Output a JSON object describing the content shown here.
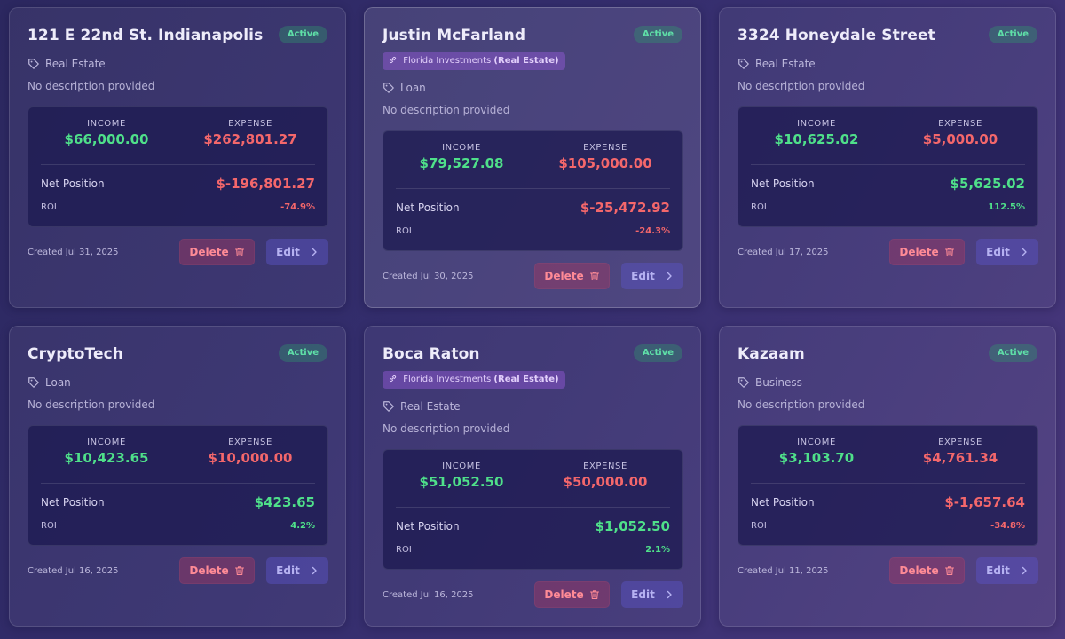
{
  "cards": [
    {
      "title": "121 E 22nd St. Indianapolis",
      "status": "Active",
      "category": "Real Estate",
      "description": "No description provided",
      "income_label": "INCOME",
      "income": "$66,000.00",
      "expense_label": "EXPENSE",
      "expense": "$262,801.27",
      "net_label": "Net Position",
      "net": "$-196,801.27",
      "roi_label": "ROI",
      "roi": "-74.9%",
      "created": "Created Jul 31, 2025",
      "delete_label": "Delete",
      "edit_label": "Edit"
    },
    {
      "title": "Justin McFarland",
      "status": "Active",
      "link_chip": "Florida Investments",
      "link_chip_type": "(Real Estate)",
      "category": "Loan",
      "description": "No description provided",
      "income_label": "INCOME",
      "income": "$79,527.08",
      "expense_label": "EXPENSE",
      "expense": "$105,000.00",
      "net_label": "Net Position",
      "net": "$-25,472.92",
      "roi_label": "ROI",
      "roi": "-24.3%",
      "created": "Created Jul 30, 2025",
      "delete_label": "Delete",
      "edit_label": "Edit"
    },
    {
      "title": "3324 Honeydale Street",
      "status": "Active",
      "category": "Real Estate",
      "description": "No description provided",
      "income_label": "INCOME",
      "income": "$10,625.02",
      "expense_label": "EXPENSE",
      "expense": "$5,000.00",
      "net_label": "Net Position",
      "net": "$5,625.02",
      "roi_label": "ROI",
      "roi": "112.5%",
      "created": "Created Jul 17, 2025",
      "delete_label": "Delete",
      "edit_label": "Edit"
    },
    {
      "title": "CryptoTech",
      "status": "Active",
      "category": "Loan",
      "description": "No description provided",
      "income_label": "INCOME",
      "income": "$10,423.65",
      "expense_label": "EXPENSE",
      "expense": "$10,000.00",
      "net_label": "Net Position",
      "net": "$423.65",
      "roi_label": "ROI",
      "roi": "4.2%",
      "created": "Created Jul 16, 2025",
      "delete_label": "Delete",
      "edit_label": "Edit"
    },
    {
      "title": "Boca Raton",
      "status": "Active",
      "link_chip": "Florida Investments",
      "link_chip_type": "(Real Estate)",
      "category": "Real Estate",
      "description": "No description provided",
      "income_label": "INCOME",
      "income": "$51,052.50",
      "expense_label": "EXPENSE",
      "expense": "$50,000.00",
      "net_label": "Net Position",
      "net": "$1,052.50",
      "roi_label": "ROI",
      "roi": "2.1%",
      "created": "Created Jul 16, 2025",
      "delete_label": "Delete",
      "edit_label": "Edit"
    },
    {
      "title": "Kazaam",
      "status": "Active",
      "category": "Business",
      "description": "No description provided",
      "income_label": "INCOME",
      "income": "$3,103.70",
      "expense_label": "EXPENSE",
      "expense": "$4,761.34",
      "net_label": "Net Position",
      "net": "$-1,657.64",
      "roi_label": "ROI",
      "roi": "-34.8%",
      "created": "Created Jul 11, 2025",
      "delete_label": "Delete",
      "edit_label": "Edit"
    }
  ],
  "colors": {
    "positive": "#4fe08a",
    "negative": "#f4676b",
    "active_badge": "#5fe0a8",
    "link_chip": "#965adc"
  },
  "icons": {
    "category": "tag-icon",
    "link_chip": "link-icon",
    "delete": "trash-icon",
    "edit": "chevron-right-icon"
  }
}
